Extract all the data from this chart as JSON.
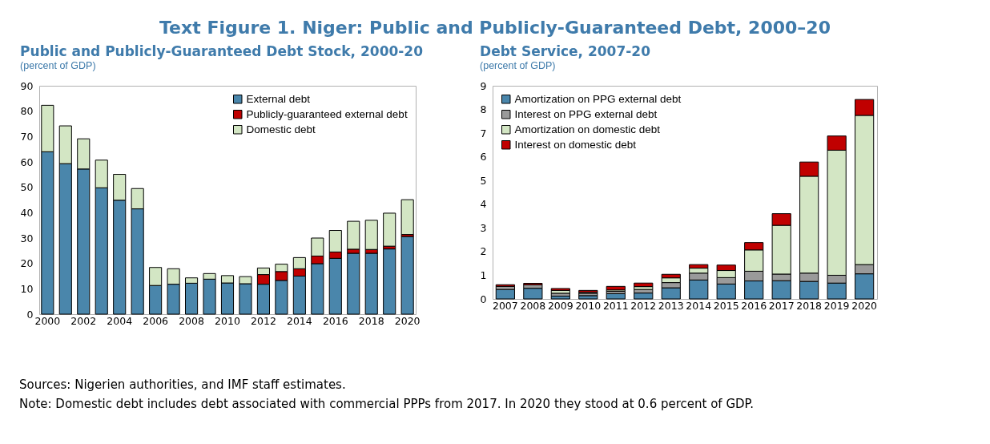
{
  "chart_data": [
    {
      "type": "bar",
      "title": "Public and Publicly-Guaranteed Debt Stock, 2000-20",
      "subtitle": "(percent of GDP)",
      "annotations": [
        "Text Figure 1. Niger: Public and Publicly-Guaranteed Debt, 2000–20",
        "Sources: Nigerien authorities, and IMF staff estimates.",
        "Note: Domestic debt includes debt associated with commercial PPPs from 2017. In 2020 they stood at 0.6 percent of GDP."
      ],
      "categories": [
        "2000",
        null,
        "2002",
        null,
        "2004",
        null,
        "2006",
        null,
        "2008",
        null,
        "2010",
        null,
        "2012",
        null,
        "2014",
        null,
        "2016",
        null,
        "2018",
        null,
        "2020"
      ],
      "stacked": true,
      "ylim": [
        0,
        90
      ],
      "yticks": [
        0,
        10,
        20,
        30,
        40,
        50,
        60,
        70,
        80,
        90
      ],
      "grid": false,
      "legend": "top right",
      "series": [
        {
          "name": "External debt",
          "color": "#4a86ab",
          "values": [
            64,
            59.3,
            57.2,
            49.8,
            44.9,
            41.5,
            11.3,
            11.8,
            12.2,
            13.8,
            12.3,
            12,
            11.8,
            13.3,
            15,
            19.9,
            22,
            24,
            24,
            25.7,
            30.6
          ]
        },
        {
          "name": "Publicly-guaranteed external debt",
          "color": "#c00000",
          "values": [
            null,
            null,
            null,
            null,
            null,
            null,
            null,
            null,
            null,
            null,
            null,
            null,
            3.8,
            3.5,
            2.9,
            3,
            2.5,
            1.6,
            1.5,
            1.1,
            0.8
          ]
        },
        {
          "name": "Domestic debt",
          "color": "#d3e6c4",
          "values": [
            18.3,
            14.9,
            11.9,
            10.9,
            10.2,
            8,
            7.1,
            6.1,
            2.1,
            2.2,
            2.9,
            2.8,
            2.6,
            2.9,
            4.4,
            7.1,
            8.5,
            11,
            11.5,
            13,
            13.7
          ]
        }
      ]
    },
    {
      "type": "bar",
      "title": "Debt Service, 2007-20",
      "subtitle": "(percent of GDP)",
      "categories": [
        "2007",
        "2008",
        "2009",
        "2010",
        "2011",
        "2012",
        "2013",
        "2014",
        "2015",
        "2016",
        "2017",
        "2018",
        "2019",
        "2020"
      ],
      "stacked": true,
      "ylim": [
        0,
        9
      ],
      "yticks": [
        0,
        1,
        2,
        3,
        4,
        5,
        6,
        7,
        8,
        9
      ],
      "grid": false,
      "legend": "top left",
      "series": [
        {
          "name": "Amortization on PPG external debt",
          "color": "#4a86ab",
          "values": [
            0.4,
            0.45,
            0.12,
            0.14,
            0.22,
            0.25,
            0.47,
            0.8,
            0.63,
            0.76,
            0.77,
            0.74,
            0.67,
            1.06
          ]
        },
        {
          "name": "Interest on PPG external debt",
          "color": "#9a9a9a",
          "values": [
            0.13,
            0.15,
            0.12,
            0.1,
            0.1,
            0.15,
            0.22,
            0.29,
            0.27,
            0.41,
            0.28,
            0.35,
            0.33,
            0.39
          ]
        },
        {
          "name": "Amortization on domestic debt",
          "color": "#d3e6c4",
          "values": [
            null,
            null,
            0.12,
            0.04,
            0.06,
            0.12,
            0.2,
            0.21,
            0.3,
            0.9,
            2.06,
            4.09,
            5.28,
            6.3
          ]
        },
        {
          "name": "Interest on domestic debt",
          "color": "#c00000",
          "values": [
            0.07,
            0.06,
            0.08,
            0.08,
            0.15,
            0.15,
            0.15,
            0.15,
            0.23,
            0.31,
            0.49,
            0.6,
            0.6,
            0.67
          ]
        }
      ]
    }
  ]
}
